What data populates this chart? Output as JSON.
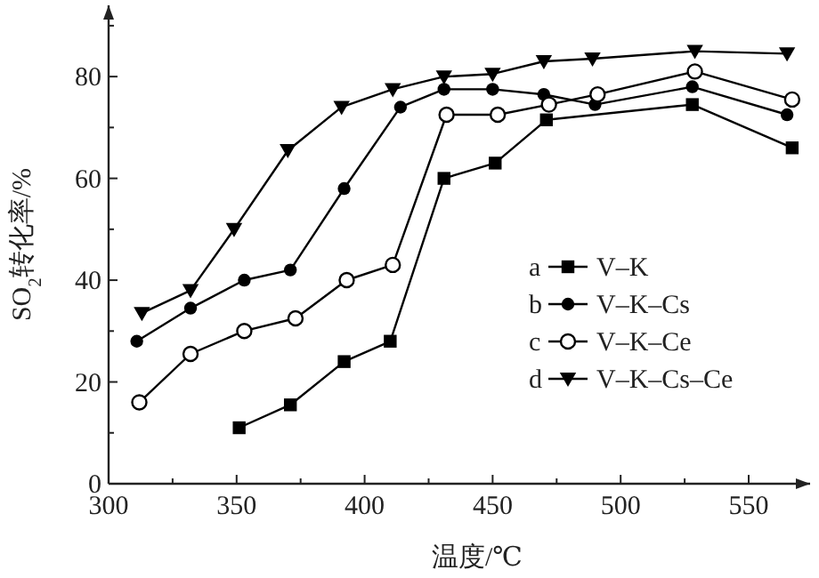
{
  "chart_data": {
    "type": "line",
    "xlabel": "温度/℃",
    "ylabel": "SO$_{2}$转化率/%",
    "xlim": [
      300,
      574
    ],
    "ylim": [
      0,
      94
    ],
    "xticks": [
      300,
      {
        "value": 325,
        "label": null
      },
      350,
      {
        "value": 375,
        "label": null
      },
      400,
      {
        "value": 425,
        "label": null
      },
      450,
      {
        "value": 475,
        "label": null
      },
      500,
      {
        "value": 525,
        "label": null
      },
      550
    ],
    "yticks": [
      0,
      {
        "value": 10,
        "label": null
      },
      20,
      {
        "value": 30,
        "label": null
      },
      40,
      {
        "value": 50,
        "label": null
      },
      60,
      {
        "value": 70,
        "label": null
      },
      80,
      {
        "value": 90,
        "label": null
      }
    ],
    "legend": "right",
    "annotations": [
      "a",
      "b",
      "c",
      "d"
    ],
    "grid": false,
    "line_style": "solid",
    "series": [
      {
        "name": "V–K",
        "color": "#000000",
        "marker": "square",
        "x": [
          351,
          371,
          392,
          410,
          431,
          451,
          471,
          528,
          567
        ],
        "values": [
          11,
          15.5,
          24,
          28,
          60,
          63,
          71.5,
          74.5,
          66
        ]
      },
      {
        "name": "V–K–Cs",
        "color": "#000000",
        "marker": "circle",
        "x": [
          311,
          332,
          353,
          371,
          392,
          414,
          431,
          450,
          470,
          490,
          528,
          565
        ],
        "values": [
          28,
          34.5,
          40,
          42,
          58,
          74,
          77.5,
          77.5,
          76.5,
          74.5,
          78,
          72.5
        ]
      },
      {
        "name": "V–K–Ce",
        "color": "#000000",
        "marker": "circle-open",
        "x": [
          312,
          332,
          353,
          373,
          393,
          411,
          432,
          452,
          472,
          491,
          529,
          567
        ],
        "values": [
          16,
          25.5,
          30,
          32.5,
          40,
          43,
          72.5,
          72.5,
          74.5,
          76.5,
          81,
          75.5
        ]
      },
      {
        "name": "V–K–Cs–Ce",
        "color": "#000000",
        "marker": "triangle",
        "x": [
          313,
          332,
          349,
          370,
          391,
          411,
          431,
          450,
          470,
          489,
          529,
          565
        ],
        "values": [
          33.5,
          38,
          50,
          65.5,
          74,
          77.5,
          80,
          80.5,
          83,
          83.5,
          85,
          84.5
        ]
      }
    ]
  }
}
